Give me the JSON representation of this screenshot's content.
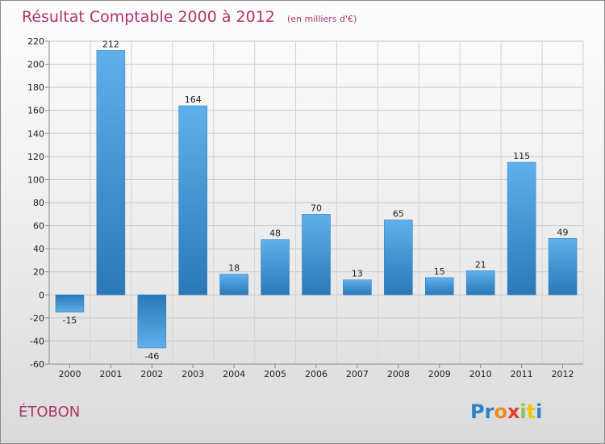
{
  "chart_data": {
    "type": "bar",
    "title": "Résultat Comptable 2000 à 2012",
    "subtitle": "(en milliers d'€)",
    "xlabel": "",
    "ylabel": "",
    "categories": [
      "2000",
      "2001",
      "2002",
      "2003",
      "2004",
      "2005",
      "2006",
      "2007",
      "2008",
      "2009",
      "2010",
      "2011",
      "2012"
    ],
    "values": [
      -15,
      212,
      -46,
      164,
      18,
      48,
      70,
      13,
      65,
      15,
      21,
      115,
      49
    ],
    "value_labels": [
      "-15",
      "212",
      "-46",
      "164",
      "18",
      "48",
      "70",
      "13",
      "65",
      "15",
      "21",
      "115",
      "49"
    ],
    "ylim": [
      -60,
      220
    ],
    "yticks": [
      -60,
      -40,
      -20,
      0,
      20,
      40,
      60,
      80,
      100,
      120,
      140,
      160,
      180,
      200,
      220
    ],
    "grid": true,
    "bar_color": "#3d93d6",
    "bar_color_light": "#5fb0ec",
    "bar_color_dark": "#2a78b8"
  },
  "place_name": "ÉTOBON",
  "brand": {
    "letters": [
      "P",
      "r",
      "o",
      "x",
      "i",
      "t",
      "i"
    ],
    "colors": [
      "#2b84c9",
      "#2b84c9",
      "#f08a1c",
      "#e23c2f",
      "#8dc63f",
      "#f2c500",
      "#2b84c9"
    ]
  }
}
